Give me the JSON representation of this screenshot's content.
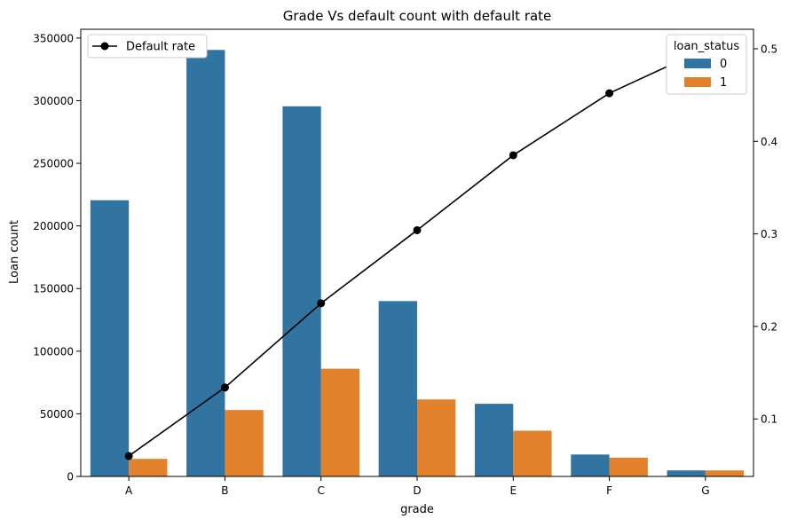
{
  "chart_data": {
    "type": "bar",
    "title": "Grade Vs default count with default rate",
    "xlabel": "grade",
    "ylabel": "Loan count",
    "y2label": "",
    "categories": [
      "A",
      "B",
      "C",
      "D",
      "E",
      "F",
      "G"
    ],
    "ylim": [
      0,
      357000
    ],
    "y_ticks": [
      0,
      50000,
      100000,
      150000,
      200000,
      250000,
      300000,
      350000
    ],
    "y2lim": [
      0.0379,
      0.5211
    ],
    "y2_ticks": [
      0.1,
      0.2,
      0.3,
      0.4,
      0.5
    ],
    "grid": false,
    "legend_title": "loan_status",
    "legend_placement": "top-right",
    "line_legend_placement": "top-left",
    "series": [
      {
        "name": "0",
        "kind": "bar",
        "axis": "left",
        "color": "#3274a1",
        "values": [
          220500,
          340500,
          295500,
          140000,
          58000,
          17500,
          4800
        ]
      },
      {
        "name": "1",
        "kind": "bar",
        "axis": "left",
        "color": "#e1812c",
        "values": [
          14000,
          53000,
          86000,
          61500,
          36500,
          15000,
          4800
        ]
      },
      {
        "name": "Default rate",
        "kind": "line",
        "axis": "right",
        "color": "#000000",
        "values": [
          0.06,
          0.134,
          0.225,
          0.304,
          0.385,
          0.452,
          0.5
        ]
      }
    ]
  }
}
